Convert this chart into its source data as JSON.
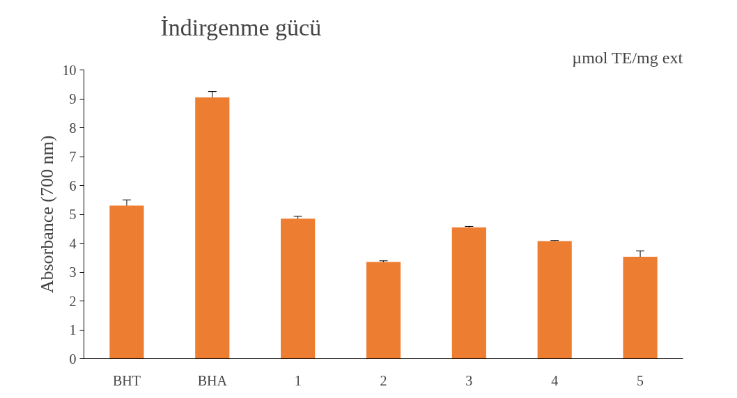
{
  "chart_data": {
    "type": "bar",
    "title": "İndirgenme gücü",
    "ylabel": "Absorbance (700 nm)",
    "annotations": [
      "µmol TE/mg ext"
    ],
    "categories": [
      "BHT",
      "BHA",
      "1",
      "2",
      "3",
      "4",
      "5"
    ],
    "values": [
      5.3,
      9.05,
      4.85,
      3.35,
      4.55,
      4.07,
      3.53
    ],
    "errors": [
      0.2,
      0.2,
      0.08,
      0.04,
      0.03,
      0.02,
      0.2
    ],
    "color": "#ed7d31",
    "ylim": [
      0,
      10
    ],
    "yticks": [
      0,
      1,
      2,
      3,
      4,
      5,
      6,
      7,
      8,
      9,
      10
    ],
    "grid": false
  }
}
